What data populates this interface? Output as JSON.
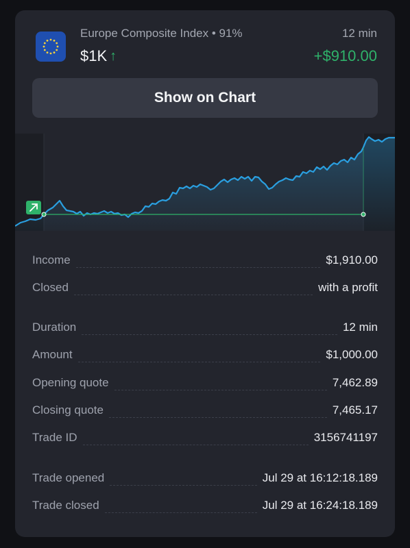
{
  "trade": {
    "asset_name": "Europe Composite Index • 91%",
    "amount_short": "$1K",
    "direction_icon": "arrow-up-icon",
    "duration": "12 min",
    "profit": "+$910.00",
    "show_chart_label": "Show on Chart"
  },
  "colors": {
    "profit_green": "#2fb26a",
    "chart_line": "#2a9fe0",
    "card_bg": "#23252d",
    "button_bg": "#363944"
  },
  "details": [
    {
      "label": "Income",
      "value": "$1,910.00"
    },
    {
      "label": "Closed",
      "value": "with a profit"
    },
    {
      "label": "Duration",
      "value": "12 min"
    },
    {
      "label": "Amount",
      "value": "$1,000.00"
    },
    {
      "label": "Opening quote",
      "value": "7,462.89"
    },
    {
      "label": "Closing quote",
      "value": "7,465.17"
    },
    {
      "label": "Trade ID",
      "value": "3156741197"
    },
    {
      "label": "Trade opened",
      "value": "Jul 29 at 16:12:18.189"
    },
    {
      "label": "Trade closed",
      "value": "Jul 29 at 16:24:18.189"
    }
  ]
}
